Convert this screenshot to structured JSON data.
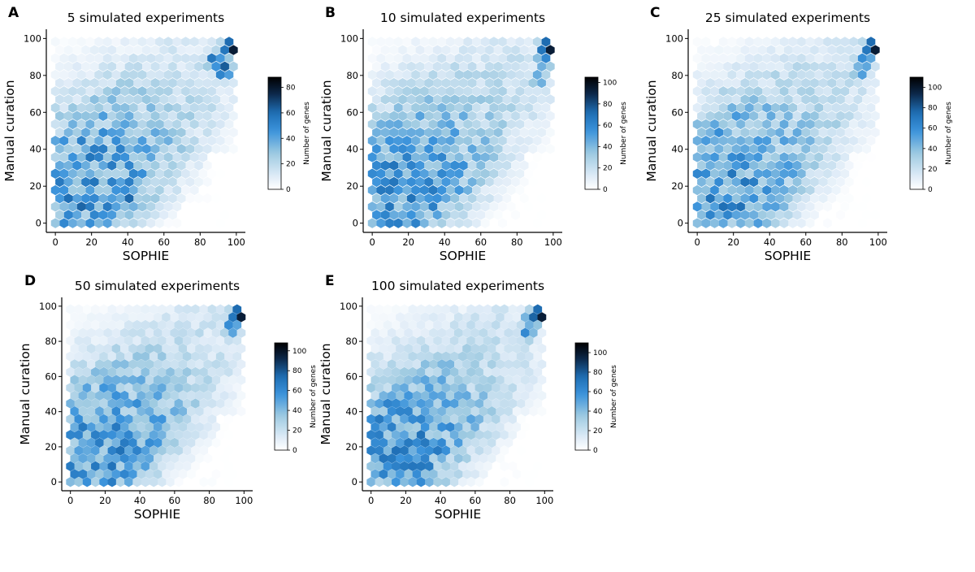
{
  "figure": {
    "panel_letters": [
      "A",
      "B",
      "C",
      "D",
      "E"
    ]
  },
  "colormap": [
    "#ffffff",
    "#deebf7",
    "#9ecae1",
    "#3b93db",
    "#1f6fb5",
    "#0b2545",
    "#000000"
  ],
  "chart_data": [
    {
      "type": "hexbin",
      "panel": "A",
      "title": "5 simulated experiments",
      "xlabel": "SOPHIE",
      "ylabel": "Manual curation",
      "xlim": [
        -5,
        105
      ],
      "ylim": [
        -5,
        105
      ],
      "xticks": [
        0,
        20,
        40,
        60,
        80,
        100
      ],
      "yticks": [
        0,
        20,
        40,
        60,
        80,
        100
      ],
      "colorbar": {
        "label": "Number of genes",
        "vmin": 0,
        "vmax": 88,
        "ticks": [
          0,
          20,
          40,
          60,
          80
        ]
      },
      "hotspots": [
        {
          "x": 97,
          "y": 95,
          "count": 88
        },
        {
          "x": 93,
          "y": 83,
          "count": 72
        },
        {
          "x": 88,
          "y": 88,
          "count": 65
        },
        {
          "x": 40,
          "y": 15,
          "count": 68
        },
        {
          "x": 15,
          "y": 10,
          "count": 65
        },
        {
          "x": 5,
          "y": 15,
          "count": 60
        },
        {
          "x": 30,
          "y": 10,
          "count": 60
        },
        {
          "x": 25,
          "y": 5,
          "count": 50
        }
      ],
      "grid": false
    },
    {
      "type": "hexbin",
      "panel": "B",
      "title": "10 simulated experiments",
      "xlabel": "SOPHIE",
      "ylabel": "Manual curation",
      "xlim": [
        -5,
        105
      ],
      "ylim": [
        -5,
        105
      ],
      "xticks": [
        0,
        20,
        40,
        60,
        80,
        100
      ],
      "yticks": [
        0,
        20,
        40,
        60,
        80,
        100
      ],
      "colorbar": {
        "label": "Number of genes",
        "vmin": 0,
        "vmax": 105,
        "ticks": [
          0,
          20,
          40,
          60,
          80,
          100
        ]
      },
      "hotspots": [
        {
          "x": 97,
          "y": 95,
          "count": 105
        },
        {
          "x": 95,
          "y": 88,
          "count": 65
        },
        {
          "x": 92,
          "y": 78,
          "count": 55
        },
        {
          "x": 10,
          "y": 15,
          "count": 55
        },
        {
          "x": 25,
          "y": 10,
          "count": 50
        }
      ],
      "grid": false
    },
    {
      "type": "hexbin",
      "panel": "C",
      "title": "25 simulated experiments",
      "xlabel": "SOPHIE",
      "ylabel": "Manual curation",
      "xlim": [
        -5,
        105
      ],
      "ylim": [
        -5,
        105
      ],
      "xticks": [
        0,
        20,
        40,
        60,
        80,
        100
      ],
      "yticks": [
        0,
        20,
        40,
        60,
        80,
        100
      ],
      "colorbar": {
        "label": "Number of genes",
        "vmin": 0,
        "vmax": 110,
        "ticks": [
          0,
          20,
          40,
          60,
          80,
          100
        ]
      },
      "hotspots": [
        {
          "x": 97,
          "y": 95,
          "count": 110
        },
        {
          "x": 93,
          "y": 88,
          "count": 70
        },
        {
          "x": 90,
          "y": 82,
          "count": 60
        },
        {
          "x": 45,
          "y": 10,
          "count": 60
        },
        {
          "x": 10,
          "y": 15,
          "count": 55
        }
      ],
      "grid": false
    },
    {
      "type": "hexbin",
      "panel": "D",
      "title": "50 simulated experiments",
      "xlabel": "SOPHIE",
      "ylabel": "Manual curation",
      "xlim": [
        -5,
        105
      ],
      "ylim": [
        -5,
        105
      ],
      "xticks": [
        0,
        20,
        40,
        60,
        80,
        100
      ],
      "yticks": [
        0,
        20,
        40,
        60,
        80,
        100
      ],
      "colorbar": {
        "label": "Number of genes",
        "vmin": 0,
        "vmax": 108,
        "ticks": [
          0,
          20,
          40,
          60,
          80,
          100
        ]
      },
      "hotspots": [
        {
          "x": 97,
          "y": 95,
          "count": 108
        },
        {
          "x": 93,
          "y": 88,
          "count": 70
        },
        {
          "x": 98,
          "y": 100,
          "count": 60
        },
        {
          "x": 10,
          "y": 15,
          "count": 55
        },
        {
          "x": 20,
          "y": 10,
          "count": 50
        }
      ],
      "grid": false
    },
    {
      "type": "hexbin",
      "panel": "E",
      "title": "100 simulated experiments",
      "xlabel": "SOPHIE",
      "ylabel": "Manual curation",
      "xlim": [
        -5,
        105
      ],
      "ylim": [
        -5,
        105
      ],
      "xticks": [
        0,
        20,
        40,
        60,
        80,
        100
      ],
      "yticks": [
        0,
        20,
        40,
        60,
        80,
        100
      ],
      "colorbar": {
        "label": "Number of genes",
        "vmin": 0,
        "vmax": 110,
        "ticks": [
          0,
          20,
          40,
          60,
          80,
          100
        ]
      },
      "hotspots": [
        {
          "x": 97,
          "y": 95,
          "count": 110
        },
        {
          "x": 93,
          "y": 93,
          "count": 80
        },
        {
          "x": 90,
          "y": 85,
          "count": 65
        },
        {
          "x": 22,
          "y": 15,
          "count": 60
        },
        {
          "x": 10,
          "y": 15,
          "count": 55
        }
      ],
      "grid": false
    }
  ]
}
